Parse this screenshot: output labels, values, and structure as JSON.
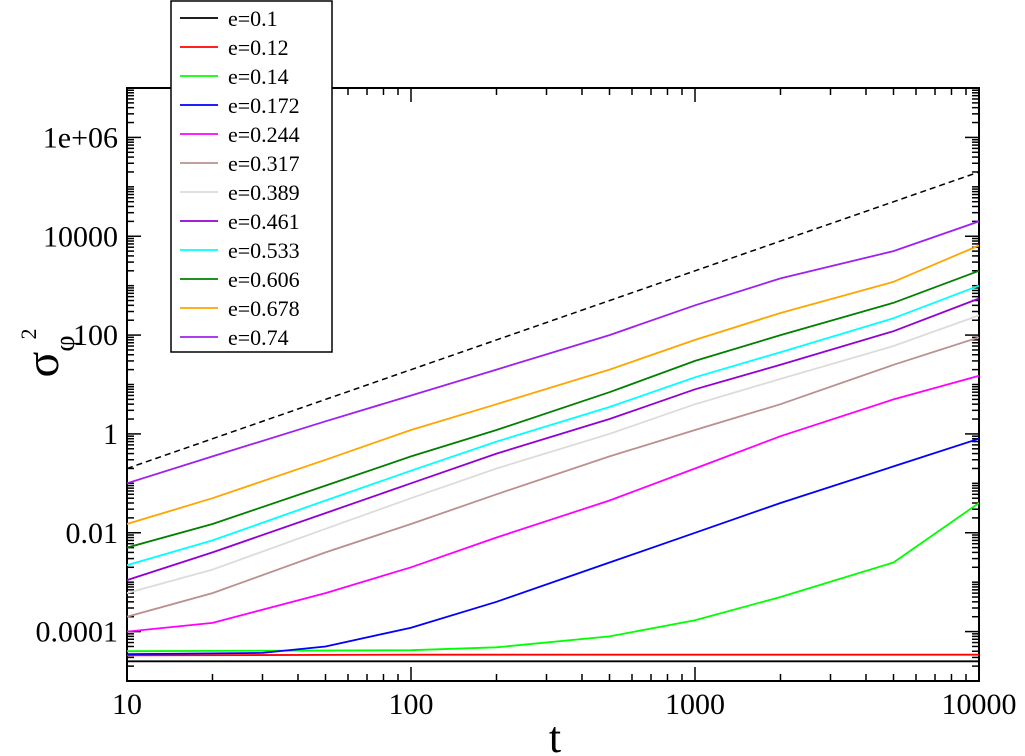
{
  "chart_data": {
    "type": "line",
    "title": "",
    "xlabel": "t",
    "ylabel": {
      "symbol": "σ",
      "subscript": "φ",
      "superscript": "2"
    },
    "x_scale": "log",
    "y_scale": "log",
    "xlim": [
      10,
      10000
    ],
    "ylim": [
      1e-05,
      10000000
    ],
    "x_ticks": [
      {
        "value": 10,
        "label": "10"
      },
      {
        "value": 100,
        "label": "100"
      },
      {
        "value": 1000,
        "label": "1000"
      },
      {
        "value": 10000,
        "label": "10000"
      }
    ],
    "y_ticks": [
      {
        "value": 0.0001,
        "label": "0.0001"
      },
      {
        "value": 0.01,
        "label": "0.01"
      },
      {
        "value": 1,
        "label": "1"
      },
      {
        "value": 100,
        "label": "100"
      },
      {
        "value": 10000,
        "label": "10000"
      },
      {
        "value": 1000000,
        "label": "1e+06"
      }
    ],
    "grid": false,
    "legend_position": "top-left",
    "series": [
      {
        "name": "e=0.1",
        "color": "#000000",
        "x": [
          10,
          100,
          1000,
          10000
        ],
        "y": [
          2.5e-05,
          2.5e-05,
          2.5e-05,
          2.5e-05
        ]
      },
      {
        "name": "e=0.12",
        "color": "#ff0000",
        "x": [
          10,
          100,
          1000,
          10000
        ],
        "y": [
          3.3e-05,
          3.4e-05,
          3.4e-05,
          3.4e-05
        ]
      },
      {
        "name": "e=0.14",
        "color": "#00ff00",
        "x": [
          10,
          100,
          200,
          500,
          1000,
          2000,
          5000,
          10000
        ],
        "y": [
          4e-05,
          4.2e-05,
          4.8e-05,
          8e-05,
          0.00017,
          0.0005,
          0.0025,
          0.04
        ]
      },
      {
        "name": "e=0.172",
        "color": "#0000ff",
        "x": [
          10,
          30,
          50,
          100,
          200,
          500,
          1000,
          2000,
          5000,
          10000
        ],
        "y": [
          3.5e-05,
          3.7e-05,
          5e-05,
          0.00012,
          0.0004,
          0.0025,
          0.01,
          0.04,
          0.22,
          0.8
        ]
      },
      {
        "name": "e=0.244",
        "color": "#ff00ff",
        "x": [
          10,
          20,
          50,
          100,
          200,
          500,
          1000,
          2000,
          5000,
          10000
        ],
        "y": [
          0.0001,
          0.00015,
          0.0006,
          0.002,
          0.008,
          0.045,
          0.2,
          0.9,
          5,
          15
        ]
      },
      {
        "name": "e=0.317",
        "color": "#bc8f8f",
        "x": [
          10,
          20,
          50,
          100,
          200,
          500,
          1000,
          2000,
          5000,
          10000
        ],
        "y": [
          0.0002,
          0.0006,
          0.004,
          0.015,
          0.06,
          0.35,
          1.2,
          4,
          25,
          90
        ]
      },
      {
        "name": "e=0.389",
        "color": "#dcdcdc",
        "x": [
          10,
          20,
          50,
          100,
          200,
          500,
          1000,
          2000,
          5000,
          10000
        ],
        "y": [
          0.0006,
          0.0018,
          0.012,
          0.05,
          0.2,
          1,
          4,
          13,
          60,
          250
        ]
      },
      {
        "name": "e=0.461",
        "color": "#9400d3",
        "x": [
          10,
          20,
          50,
          100,
          200,
          500,
          1000,
          2000,
          5000,
          10000
        ],
        "y": [
          0.0011,
          0.004,
          0.025,
          0.1,
          0.4,
          2,
          8,
          25,
          120,
          550
        ]
      },
      {
        "name": "e=0.533",
        "color": "#00ffff",
        "x": [
          10,
          20,
          50,
          100,
          200,
          500,
          1000,
          2000,
          5000,
          10000
        ],
        "y": [
          0.0022,
          0.007,
          0.045,
          0.18,
          0.7,
          3.5,
          14,
          45,
          220,
          1000
        ]
      },
      {
        "name": "e=0.606",
        "color": "#008000",
        "x": [
          10,
          20,
          50,
          100,
          200,
          500,
          1000,
          2000,
          5000,
          10000
        ],
        "y": [
          0.005,
          0.015,
          0.09,
          0.35,
          1.2,
          7,
          30,
          100,
          450,
          2000
        ]
      },
      {
        "name": "e=0.678",
        "color": "#ffa500",
        "x": [
          10,
          20,
          50,
          100,
          200,
          500,
          1000,
          2000,
          5000,
          10000
        ],
        "y": [
          0.015,
          0.05,
          0.3,
          1.2,
          4,
          20,
          80,
          280,
          1200,
          6500
        ]
      },
      {
        "name": "e=0.74",
        "color": "#a020f0",
        "x": [
          10,
          20,
          50,
          100,
          200,
          500,
          1000,
          2000,
          5000,
          10000
        ],
        "y": [
          0.1,
          0.35,
          1.8,
          6,
          20,
          100,
          400,
          1400,
          5000,
          20000
        ]
      }
    ],
    "reference_line": {
      "style": "dashed",
      "color": "#000000",
      "x": [
        10,
        10000
      ],
      "y": [
        0.2,
        200000
      ]
    }
  }
}
